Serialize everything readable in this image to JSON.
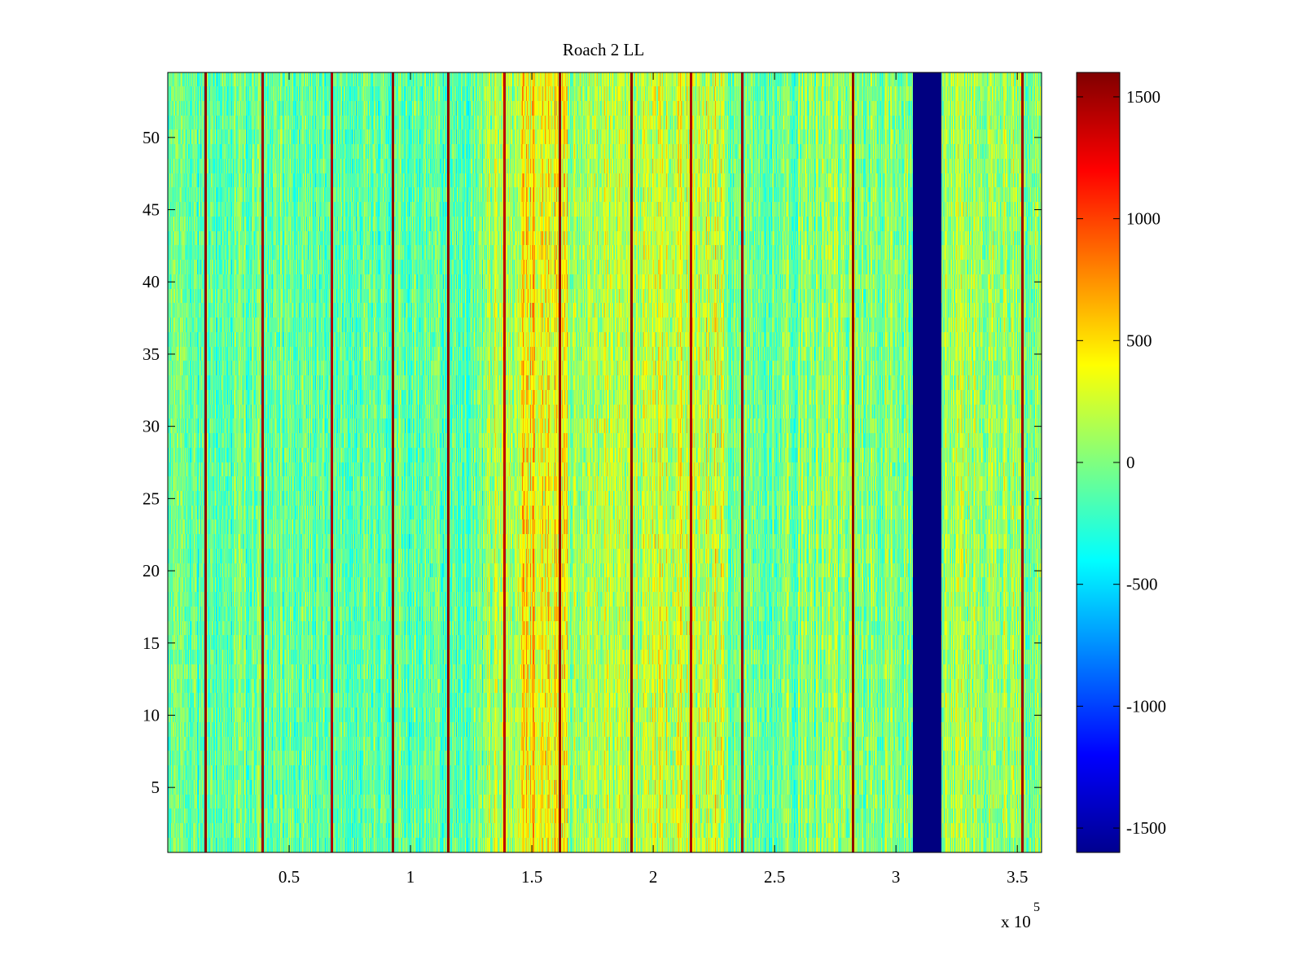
{
  "chart_data": {
    "type": "heatmap",
    "title": "Roach 2 LL",
    "xlabel": "",
    "ylabel": "",
    "x_exponent_label": "x 10",
    "x_exponent_power": "5",
    "xlim": [
      0,
      3.6
    ],
    "ylim": [
      0.5,
      54.5
    ],
    "x_ticks": [
      0.5,
      1,
      1.5,
      2,
      2.5,
      3,
      3.5
    ],
    "x_tick_labels": [
      "0.5",
      "1",
      "1.5",
      "2",
      "2.5",
      "3",
      "3.5"
    ],
    "y_ticks": [
      5,
      10,
      15,
      20,
      25,
      30,
      35,
      40,
      45,
      50
    ],
    "y_tick_labels": [
      "5",
      "10",
      "15",
      "20",
      "25",
      "30",
      "35",
      "40",
      "45",
      "50"
    ],
    "colorbar": {
      "colormap": "jet",
      "range": [
        -1600,
        1600
      ],
      "ticks": [
        -1500,
        -1000,
        -500,
        0,
        500,
        1000,
        1500
      ],
      "tick_labels": [
        "-1500",
        "-1000",
        "-500",
        "0",
        "500",
        "1000",
        "1500"
      ]
    },
    "rows": 54,
    "columns_per_unit": 300,
    "column_bands": [
      {
        "x_start": 0.0,
        "x_end": 1.3,
        "mean": -100,
        "spread": 380
      },
      {
        "x_start": 1.3,
        "x_end": 1.45,
        "mean": 150,
        "spread": 420
      },
      {
        "x_start": 1.45,
        "x_end": 1.65,
        "mean": 420,
        "spread": 480
      },
      {
        "x_start": 1.65,
        "x_end": 1.95,
        "mean": 150,
        "spread": 420
      },
      {
        "x_start": 1.95,
        "x_end": 2.3,
        "mean": 250,
        "spread": 450
      },
      {
        "x_start": 2.3,
        "x_end": 2.6,
        "mean": -50,
        "spread": 400
      },
      {
        "x_start": 2.6,
        "x_end": 3.07,
        "mean": 50,
        "spread": 420
      },
      {
        "x_start": 3.07,
        "x_end": 3.19,
        "mean": -1600,
        "spread": 0
      },
      {
        "x_start": 3.19,
        "x_end": 3.6,
        "mean": 100,
        "spread": 430
      }
    ],
    "vertical_lines": [
      {
        "x": 0.155,
        "value": 1550
      },
      {
        "x": 0.39,
        "value": 1500
      },
      {
        "x": 0.675,
        "value": 1450
      },
      {
        "x": 0.925,
        "value": 1550
      },
      {
        "x": 1.155,
        "value": 1550
      },
      {
        "x": 1.385,
        "value": 1400
      },
      {
        "x": 1.615,
        "value": 1500
      },
      {
        "x": 1.91,
        "value": 1550
      },
      {
        "x": 2.155,
        "value": 1450
      },
      {
        "x": 2.365,
        "value": 1500
      },
      {
        "x": 2.82,
        "value": 1550
      },
      {
        "x": 3.52,
        "value": 1500
      }
    ]
  }
}
